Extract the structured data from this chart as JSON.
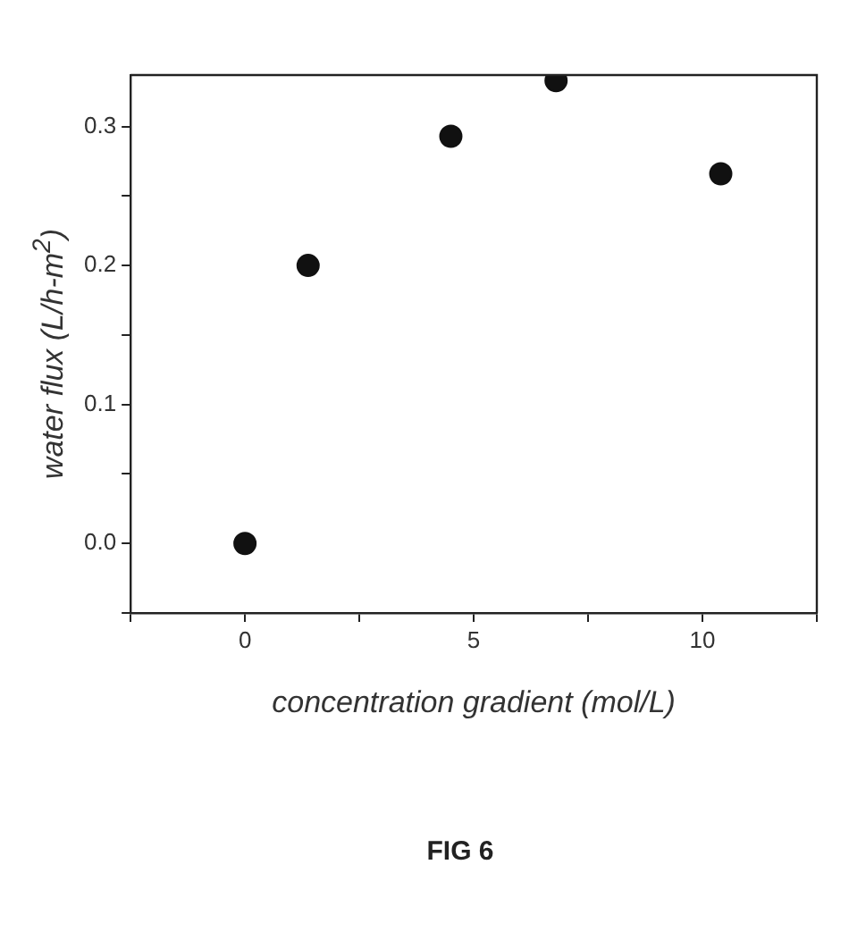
{
  "chart_data": {
    "type": "scatter",
    "xlabel": "concentration gradient (mol/L)",
    "ylabel": "water flux (L/h-m$^{2}$)",
    "x": [
      0,
      1.38,
      4.5,
      6.8,
      10.4
    ],
    "values": [
      0,
      0.2,
      0.293,
      0.333,
      0.266
    ],
    "color": "#111111",
    "marker": "circle",
    "xlim": [
      -2.5,
      12.5
    ],
    "xticks": [
      {
        "value": -2.5,
        "label": null
      },
      0,
      {
        "value": 2.5,
        "label": null
      },
      5,
      {
        "value": 7.5,
        "label": null
      },
      10,
      {
        "value": 12.5,
        "label": null
      }
    ],
    "ylim": [
      -0.05,
      0.337
    ],
    "yticks": [
      {
        "value": -0.05,
        "label": null
      },
      {
        "value": 0,
        "label": "0.0"
      },
      {
        "value": 0.05,
        "label": null
      },
      {
        "value": 0.1,
        "label": "0.1"
      },
      {
        "value": 0.15,
        "label": null
      },
      {
        "value": 0.2,
        "label": "0.2"
      },
      {
        "value": 0.25,
        "label": null
      },
      {
        "value": 0.3,
        "label": "0.3"
      }
    ],
    "grid": false,
    "legend": false,
    "annotations": [
      "FIG 6"
    ]
  }
}
